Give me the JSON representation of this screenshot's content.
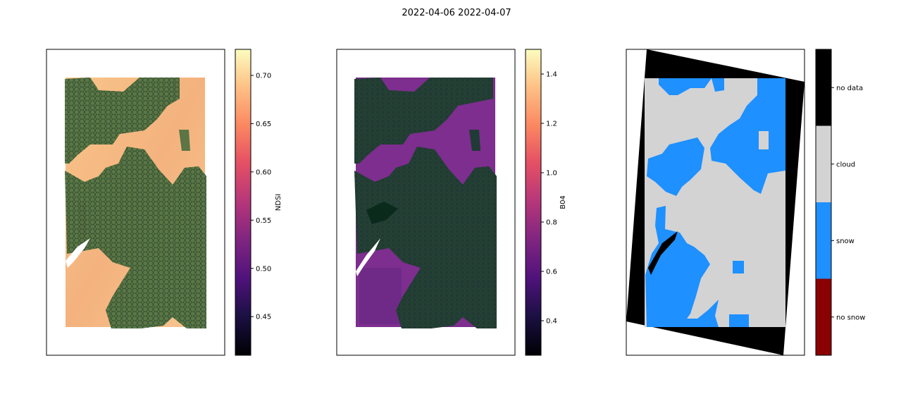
{
  "chart_data": {
    "title": "2022-04-06 2022-04-07",
    "panels": [
      {
        "type": "heatmap",
        "name": "ndsi-panel",
        "colormap": "magma",
        "colorbar": {
          "label": "NDSI",
          "range": [
            0.41,
            0.727
          ],
          "ticks": [
            0.45,
            0.5,
            0.55,
            0.6,
            0.65,
            0.7
          ],
          "tick_labels": [
            "0.45",
            "0.50",
            "0.55",
            "0.60",
            "0.65",
            "0.70"
          ]
        },
        "overlay": "green hexagon grid (cloud mask)",
        "axes_ticks": "none"
      },
      {
        "type": "heatmap",
        "name": "b04-panel",
        "colormap": "magma",
        "colorbar": {
          "label": "B04",
          "range": [
            0.26,
            1.5
          ],
          "ticks": [
            0.4,
            0.6,
            0.8,
            1.0,
            1.2,
            1.4
          ],
          "tick_labels": [
            "0.4",
            "0.6",
            "0.8",
            "1.0",
            "1.2",
            "1.4"
          ]
        },
        "overlay": "green hexagon grid (cloud mask)",
        "axes_ticks": "none"
      },
      {
        "type": "heatmap",
        "name": "classification-panel",
        "categories": [
          "no snow",
          "snow",
          "cloud",
          "no data"
        ],
        "category_colors": [
          "#8b0000",
          "#1e90ff",
          "#d3d3d3",
          "#000000"
        ],
        "axes_ticks": "none"
      }
    ]
  }
}
